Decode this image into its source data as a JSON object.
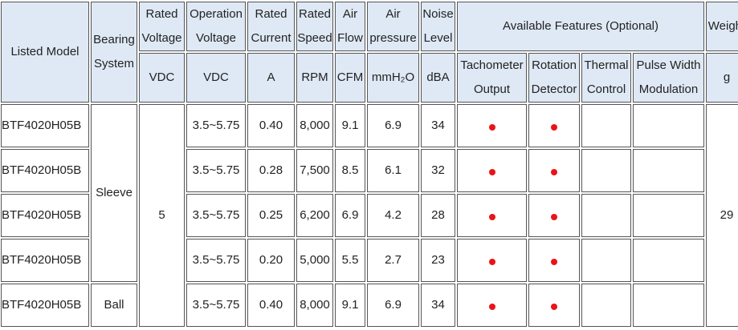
{
  "header": {
    "listed_model": "Listed Model",
    "bearing_system": "Bearing System",
    "rated_voltage": "Rated Voltage",
    "operation_voltage": "Operation Voltage",
    "rated_current": "Rated Current",
    "rated_speed": "Rated Speed",
    "air_flow": "Air Flow",
    "air_pressure": "Air pressure",
    "noise_level": "Noise Level",
    "available_features": "Available Features (Optional)",
    "weight": "Weight",
    "units": [
      "VDC",
      "VDC",
      "A",
      "RPM",
      "CFM",
      "mmH₂O",
      "dBA"
    ],
    "features": [
      "Tachometer Output",
      "Rotation Detector",
      "Thermal Control",
      "Pulse Width Modulation"
    ],
    "weight_unit": "g"
  },
  "table": {
    "bearing": [
      "Sleeve",
      "Ball"
    ],
    "rated_voltage": "5",
    "weight": "29",
    "rows": [
      [
        "BTF4020H05B",
        "3.5~5.75",
        "0.40",
        "8,000",
        "9.1",
        "6.9",
        "34"
      ],
      [
        "BTF4020H05B",
        "3.5~5.75",
        "0.28",
        "7,500",
        "8.5",
        "6.1",
        "32"
      ],
      [
        "BTF4020H05B",
        "3.5~5.75",
        "0.25",
        "6,200",
        "6.9",
        "4.2",
        "28"
      ],
      [
        "BTF4020H05B",
        "3.5~5.75",
        "0.20",
        "5,000",
        "5.5",
        "2.7",
        "23"
      ],
      [
        "BTF4020H05B",
        "3.5~5.75",
        "0.40",
        "8,000",
        "9.1",
        "6.9",
        "34"
      ]
    ]
  }
}
